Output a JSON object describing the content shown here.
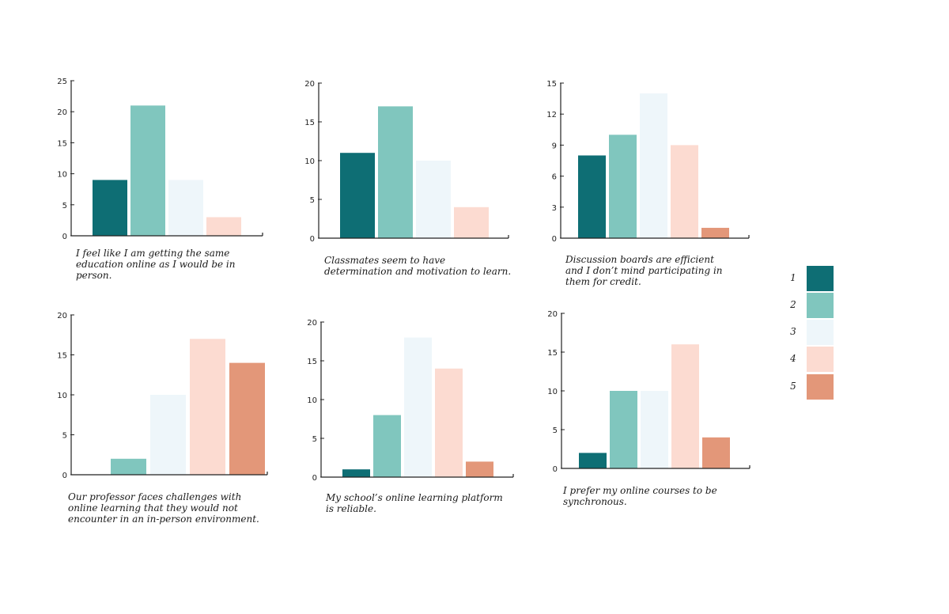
{
  "colors": [
    "#0e6e74",
    "#80c6be",
    "#eef6fa",
    "#fcdbd1",
    "#e39779"
  ],
  "legend": {
    "items": [
      "1",
      "2",
      "3",
      "4",
      "5"
    ]
  },
  "chart_data": [
    {
      "type": "bar",
      "categories": [
        "1",
        "2",
        "3",
        "4",
        "5"
      ],
      "values": [
        9,
        21,
        9,
        3,
        0
      ],
      "ylim": [
        0,
        25
      ],
      "yticks": [
        "0",
        "5",
        "10",
        "15",
        "20",
        "25"
      ],
      "caption": "I feel like I am getting the same education online as I would be in person."
    },
    {
      "type": "bar",
      "categories": [
        "1",
        "2",
        "3",
        "4",
        "5"
      ],
      "values": [
        11,
        17,
        10,
        4,
        0
      ],
      "ylim": [
        0,
        20
      ],
      "yticks": [
        "0",
        "5",
        "10",
        "15",
        "20"
      ],
      "caption": "Classmates seem to have determination and motivation to learn."
    },
    {
      "type": "bar",
      "categories": [
        "1",
        "2",
        "3",
        "4",
        "5"
      ],
      "values": [
        8,
        10,
        14,
        9,
        1
      ],
      "ylim": [
        0,
        15
      ],
      "yticks": [
        "0",
        "3",
        "6",
        "9",
        "12",
        "15"
      ],
      "caption": "Discussion boards are efficient and I don’t mind participating in them for credit."
    },
    {
      "type": "bar",
      "categories": [
        "1",
        "2",
        "3",
        "4",
        "5"
      ],
      "values": [
        0,
        2,
        10,
        17,
        14
      ],
      "ylim": [
        0,
        20
      ],
      "yticks": [
        "0",
        "5",
        "10",
        "15",
        "20"
      ],
      "caption": "Our professor faces challenges with online learning that they would not encounter in an in-person environment."
    },
    {
      "type": "bar",
      "categories": [
        "1",
        "2",
        "3",
        "4",
        "5"
      ],
      "values": [
        1,
        8,
        18,
        14,
        2
      ],
      "ylim": [
        0,
        20
      ],
      "yticks": [
        "0",
        "5",
        "10",
        "15",
        "20"
      ],
      "caption": "My school’s online learning platform is reliable."
    },
    {
      "type": "bar",
      "categories": [
        "1",
        "2",
        "3",
        "4",
        "5"
      ],
      "values": [
        2,
        10,
        10,
        16,
        4
      ],
      "ylim": [
        0,
        20
      ],
      "yticks": [
        "0",
        "5",
        "10",
        "15",
        "20"
      ],
      "caption": "I prefer my online courses to be synchronous."
    }
  ]
}
